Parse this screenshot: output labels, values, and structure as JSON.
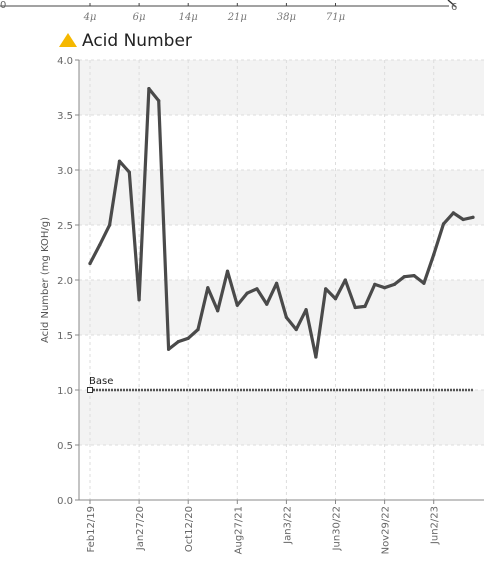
{
  "top_axis": {
    "left_label": "0",
    "right_label": "6",
    "ticks": [
      "4μ",
      "6μ",
      "14μ",
      "21μ",
      "38μ",
      "71μ"
    ]
  },
  "header": {
    "title": "Acid Number",
    "warning_icon": "warning-triangle-icon",
    "warning_color": "#F5B800"
  },
  "chart_data": {
    "type": "line",
    "title": "Acid Number",
    "ylabel": "Acid Number (mg KOH/g)",
    "xlabel": "",
    "ylim": [
      0,
      4
    ],
    "yticks": [
      "0.0",
      "0.5",
      "1.0",
      "1.5",
      "2.0",
      "2.5",
      "3.0",
      "3.5",
      "4.0"
    ],
    "x_tick_labels": [
      "Feb12/19",
      "Jan27/20",
      "Oct12/20",
      "Aug27/21",
      "Jan3/22",
      "Jun30/22",
      "Nov29/22",
      "Jun2/23"
    ],
    "x_tick_index": [
      0,
      5,
      10,
      15,
      20,
      25,
      30,
      35
    ],
    "grid": true,
    "series": [
      {
        "name": "",
        "color": "#4a4a4a",
        "values": [
          2.15,
          2.32,
          2.5,
          3.08,
          2.98,
          1.82,
          3.74,
          3.63,
          1.37,
          1.44,
          1.47,
          1.55,
          1.93,
          1.72,
          2.08,
          1.77,
          1.88,
          1.92,
          1.78,
          1.97,
          1.66,
          1.55,
          1.73,
          1.3,
          1.92,
          1.83,
          2.0,
          1.75,
          1.76,
          1.96,
          1.93,
          1.96,
          2.03,
          2.04,
          1.97,
          2.23,
          2.51,
          2.61,
          2.55,
          2.57
        ]
      }
    ],
    "base_line": {
      "label": "Base",
      "value": 1.0,
      "color": "#555555"
    }
  }
}
